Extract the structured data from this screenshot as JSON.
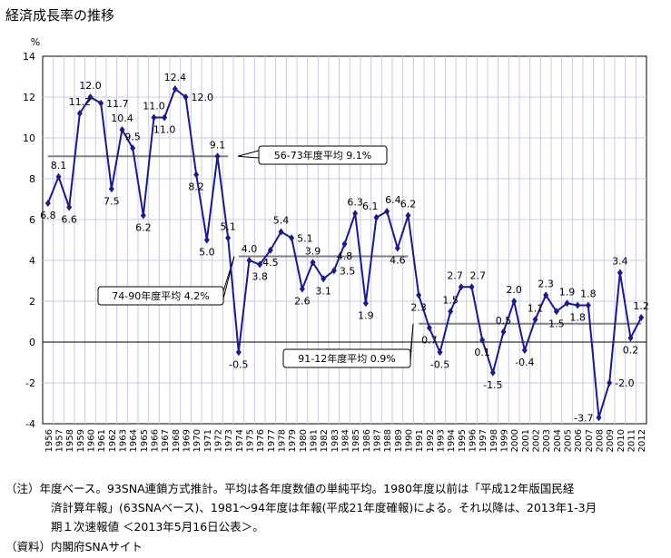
{
  "title": "経済成長率の推移",
  "chart_data": {
    "type": "line",
    "title": "経済成長率の推移",
    "ylabel": "%",
    "ylim": [
      -4,
      14
    ],
    "yticks": [
      -4,
      -2,
      0,
      2,
      4,
      6,
      8,
      10,
      12,
      14
    ],
    "grid": true,
    "categories": [
      "1956",
      "1957",
      "1958",
      "1959",
      "1960",
      "1961",
      "1962",
      "1963",
      "1964",
      "1965",
      "1966",
      "1967",
      "1968",
      "1969",
      "1970",
      "1971",
      "1972",
      "1973",
      "1974",
      "1975",
      "1976",
      "1977",
      "1978",
      "1979",
      "1980",
      "1981",
      "1982",
      "1983",
      "1984",
      "1985",
      "1986",
      "1987",
      "1988",
      "1989",
      "1990",
      "1991",
      "1992",
      "1993",
      "1994",
      "1995",
      "1996",
      "1997",
      "1998",
      "1999",
      "2000",
      "2001",
      "2002",
      "2003",
      "2004",
      "2005",
      "2006",
      "2007",
      "2008",
      "2009",
      "2010",
      "2011",
      "2012"
    ],
    "values": [
      6.8,
      8.1,
      6.6,
      11.2,
      12.0,
      11.7,
      7.5,
      10.4,
      9.5,
      6.2,
      11.0,
      11.0,
      12.4,
      12.0,
      8.2,
      5.0,
      9.1,
      5.1,
      -0.5,
      4.0,
      3.8,
      4.5,
      5.4,
      5.1,
      2.6,
      3.9,
      3.1,
      3.5,
      4.8,
      6.3,
      1.9,
      6.1,
      6.4,
      4.6,
      6.2,
      2.3,
      0.7,
      -0.5,
      1.5,
      2.7,
      2.7,
      0.1,
      -1.5,
      0.5,
      2.0,
      -0.4,
      1.1,
      2.3,
      1.5,
      1.9,
      1.8,
      1.8,
      -3.7,
      -2.0,
      3.4,
      0.2,
      1.2
    ],
    "averages": [
      {
        "label": "56-73年度平均 9.1%",
        "value": 9.1,
        "from": "1956",
        "to": "1973"
      },
      {
        "label": "74-90年度平均 4.2%",
        "value": 4.2,
        "from": "1974",
        "to": "1990"
      },
      {
        "label": "91-12年度平均 0.9%",
        "value": 0.9,
        "from": "1991",
        "to": "2012"
      }
    ],
    "colors": {
      "line": "#1a1a8c",
      "average": "#808080",
      "grid": "#c8c8e8"
    }
  },
  "notes": {
    "line1": "（注）年度ベース。93SNA連鎖方式推計。平均は各年度数値の単純平均。1980年度以前は「平成12年版国民経",
    "line2": "済計算年報」(63SNAベース)、1981～94年度は年報(平成21年度確報)による。それ以降は、2013年1-3月",
    "line3": "期１次速報値 ＜2013年5月16日公表＞。",
    "source": "（資料）内閣府SNAサイト"
  }
}
